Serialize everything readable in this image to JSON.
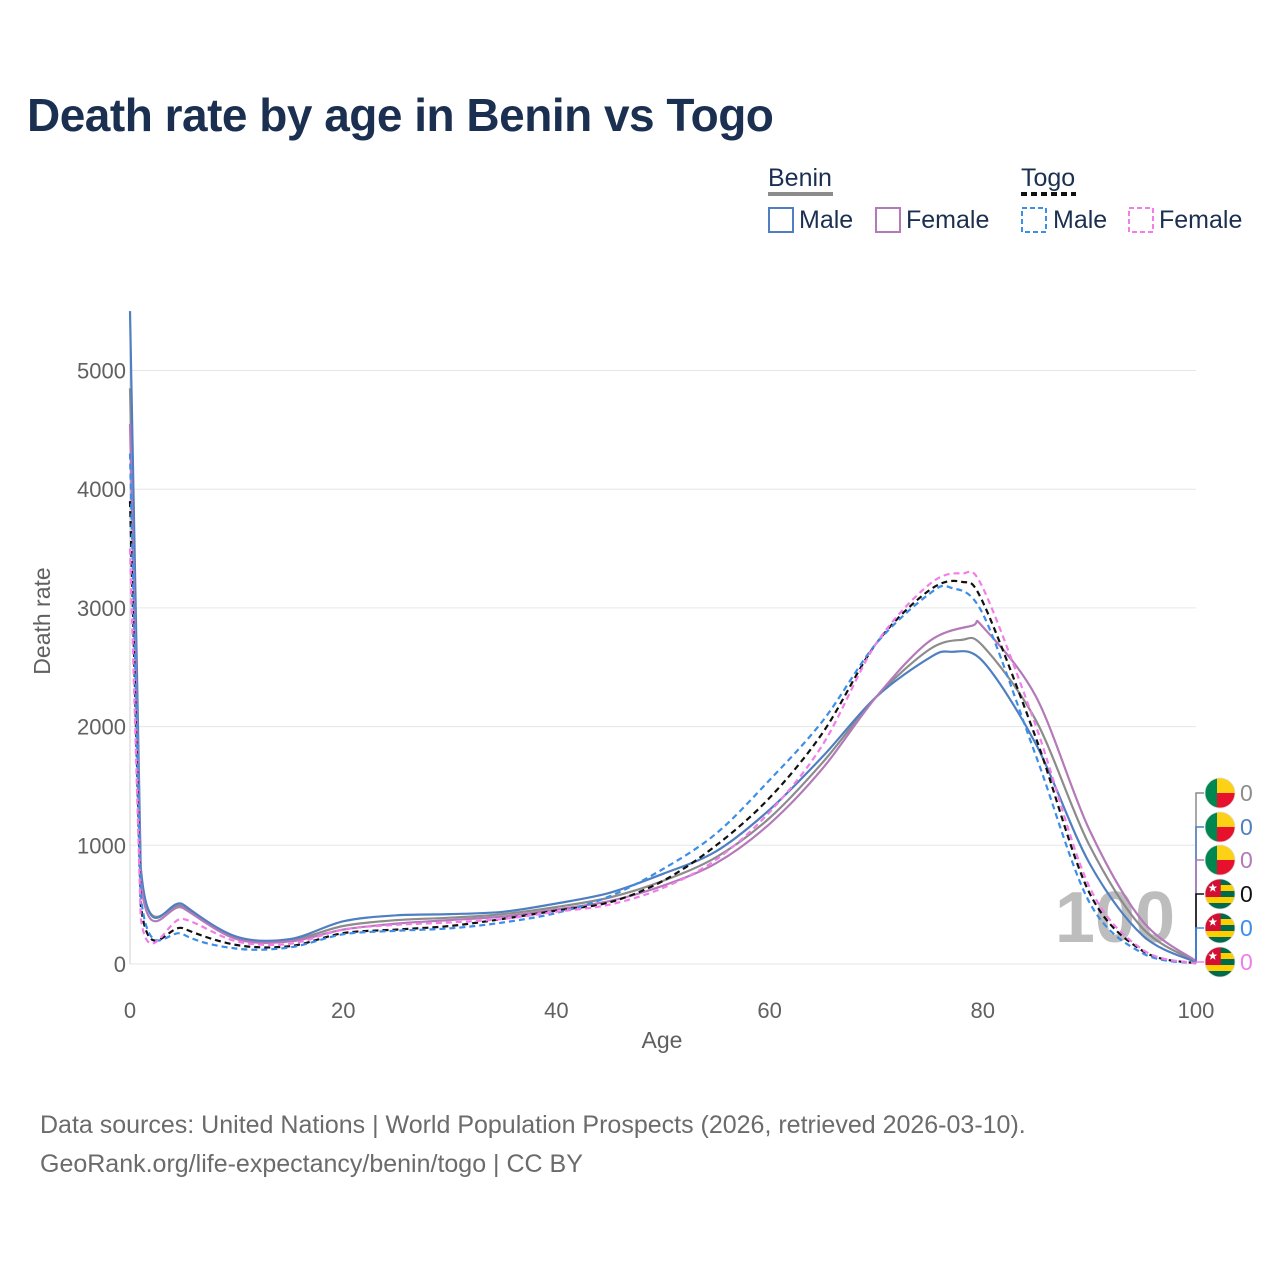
{
  "title": "Death rate by age in Benin vs Togo",
  "legend": {
    "groups": [
      {
        "name": "Benin",
        "color": "#8c8c8c",
        "dashed": false
      },
      {
        "name": "Togo",
        "color": "#111111",
        "dashed": true
      }
    ],
    "entries": [
      {
        "label": "Male",
        "color": "#4f7fc1",
        "dashed": false
      },
      {
        "label": "Female",
        "color": "#b379b8",
        "dashed": false
      },
      {
        "label": "Male",
        "color": "#3d8ee8",
        "dashed": true
      },
      {
        "label": "Female",
        "color": "#f17ee8",
        "dashed": true
      }
    ]
  },
  "year": "100",
  "end_labels": [
    "0",
    "0",
    "0",
    "0",
    "0",
    "0"
  ],
  "source_line1": "Data sources: United Nations | World Population Prospects (2026, retrieved 2026-03-10).",
  "source_line2": "GeoRank.org/life-expectancy/benin/togo | CC BY",
  "chart_data": {
    "type": "line",
    "title": "Death rate by age in Benin vs Togo",
    "xlabel": "Age",
    "ylabel": "Death rate",
    "xlim": [
      0,
      100
    ],
    "ylim": [
      0,
      5500
    ],
    "xticks": [
      0,
      20,
      40,
      60,
      80,
      100
    ],
    "yticks": [
      0,
      1000,
      2000,
      3000,
      4000,
      5000
    ],
    "grid": true,
    "legend_position": "top-right",
    "series": [
      {
        "name": "Benin Total",
        "color": "#8c8c8c",
        "dashed": false,
        "x": [
          0,
          1,
          5,
          10,
          15,
          20,
          25,
          30,
          35,
          40,
          45,
          50,
          55,
          60,
          65,
          70,
          75,
          78,
          80,
          85,
          90,
          95,
          100
        ],
        "y": [
          4850,
          780,
          480,
          220,
          200,
          320,
          370,
          390,
          420,
          480,
          560,
          700,
          900,
          1230,
          1700,
          2250,
          2650,
          2730,
          2680,
          2050,
          1000,
          300,
          20
        ]
      },
      {
        "name": "Benin Male",
        "color": "#4f7fc1",
        "dashed": false,
        "x": [
          0,
          1,
          5,
          10,
          15,
          20,
          25,
          30,
          35,
          40,
          45,
          50,
          55,
          60,
          65,
          70,
          75,
          77,
          80,
          85,
          90,
          95,
          100
        ],
        "y": [
          5500,
          820,
          500,
          230,
          210,
          360,
          410,
          420,
          440,
          510,
          600,
          760,
          950,
          1300,
          1750,
          2250,
          2580,
          2630,
          2550,
          1850,
          850,
          240,
          15
        ]
      },
      {
        "name": "Benin Female",
        "color": "#b379b8",
        "dashed": false,
        "x": [
          0,
          1,
          5,
          10,
          15,
          20,
          25,
          30,
          35,
          40,
          45,
          50,
          55,
          60,
          65,
          70,
          75,
          79,
          80,
          85,
          90,
          95,
          100
        ],
        "y": [
          4550,
          700,
          470,
          210,
          190,
          290,
          340,
          370,
          400,
          460,
          530,
          660,
          850,
          1180,
          1650,
          2250,
          2720,
          2850,
          2840,
          2250,
          1130,
          360,
          25
        ]
      },
      {
        "name": "Togo Total",
        "color": "#111111",
        "dashed": true,
        "x": [
          0,
          1,
          5,
          10,
          15,
          20,
          25,
          30,
          35,
          40,
          45,
          50,
          55,
          60,
          65,
          70,
          75,
          78,
          80,
          85,
          90,
          95,
          100
        ],
        "y": [
          3900,
          500,
          300,
          160,
          150,
          260,
          290,
          320,
          380,
          450,
          520,
          700,
          1000,
          1400,
          1950,
          2700,
          3150,
          3220,
          3050,
          1900,
          600,
          110,
          5
        ]
      },
      {
        "name": "Togo Male",
        "color": "#3d8ee8",
        "dashed": true,
        "x": [
          0,
          1,
          5,
          10,
          15,
          20,
          25,
          30,
          35,
          40,
          45,
          50,
          55,
          60,
          65,
          70,
          75,
          77,
          80,
          85,
          90,
          95,
          100
        ],
        "y": [
          4300,
          580,
          250,
          130,
          140,
          250,
          280,
          300,
          350,
          430,
          570,
          800,
          1100,
          1550,
          2050,
          2700,
          3120,
          3170,
          2950,
          1750,
          520,
          90,
          5
        ]
      },
      {
        "name": "Togo Female",
        "color": "#f17ee8",
        "dashed": true,
        "x": [
          0,
          1,
          5,
          10,
          15,
          20,
          25,
          30,
          35,
          40,
          45,
          50,
          55,
          60,
          65,
          70,
          75,
          78,
          80,
          85,
          90,
          95,
          100
        ],
        "y": [
          3500,
          390,
          380,
          190,
          170,
          290,
          330,
          350,
          380,
          440,
          500,
          640,
          880,
          1280,
          1850,
          2700,
          3200,
          3290,
          3170,
          2000,
          650,
          120,
          5
        ]
      }
    ]
  }
}
